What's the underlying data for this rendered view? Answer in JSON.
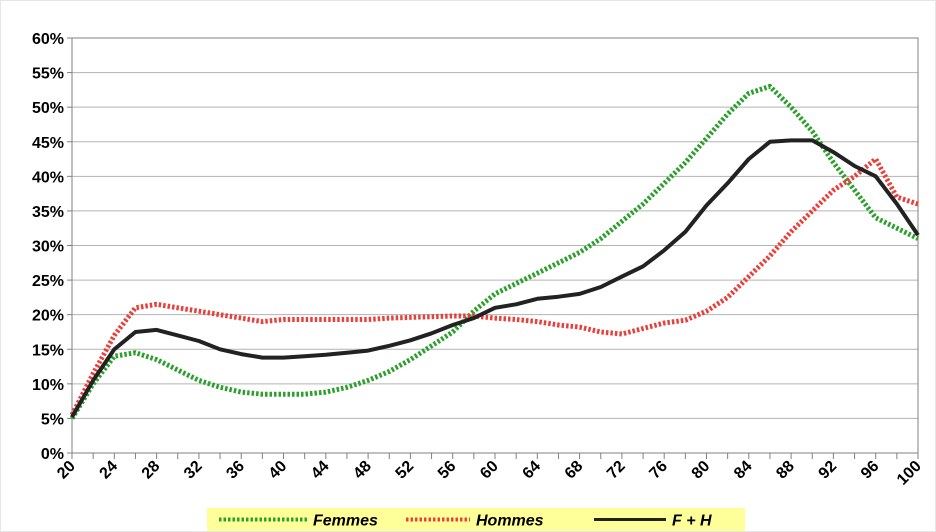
{
  "chart_data": {
    "type": "line",
    "title": "",
    "xlabel": "",
    "ylabel": "",
    "x": [
      20,
      22,
      24,
      26,
      28,
      30,
      32,
      34,
      36,
      38,
      40,
      42,
      44,
      46,
      48,
      50,
      52,
      54,
      56,
      58,
      60,
      62,
      64,
      66,
      68,
      70,
      72,
      74,
      76,
      78,
      80,
      82,
      84,
      86,
      88,
      90,
      92,
      94,
      96,
      98,
      100
    ],
    "xticks": [
      20,
      24,
      28,
      32,
      36,
      40,
      44,
      48,
      52,
      56,
      60,
      64,
      68,
      72,
      76,
      80,
      84,
      88,
      92,
      96,
      100
    ],
    "xlim": [
      20,
      100
    ],
    "ylim": [
      0,
      60
    ],
    "yticks": [
      0,
      5,
      10,
      15,
      20,
      25,
      30,
      35,
      40,
      45,
      50,
      55,
      60
    ],
    "ytick_format": "%",
    "grid": true,
    "legend": "bottom-center",
    "series": [
      {
        "name": "Femmes",
        "color": "#2ca02c",
        "style": "dotted",
        "values": [
          5,
          10,
          14,
          14.5,
          13.5,
          12,
          10.5,
          9.5,
          8.8,
          8.5,
          8.5,
          8.5,
          8.8,
          9.5,
          10.5,
          11.8,
          13.5,
          15.5,
          17.5,
          20.5,
          23,
          24.5,
          26,
          27.5,
          29,
          31,
          33.5,
          36,
          39,
          42,
          45.5,
          49,
          52,
          53,
          50,
          46.5,
          42,
          38,
          34,
          32.5,
          31
        ]
      },
      {
        "name": "Hommes",
        "color": "#e8413c",
        "style": "dotted",
        "values": [
          5.5,
          11.5,
          17,
          21,
          21.5,
          21,
          20.5,
          20,
          19.5,
          19,
          19.3,
          19.3,
          19.3,
          19.3,
          19.3,
          19.5,
          19.6,
          19.7,
          19.8,
          19.8,
          19.5,
          19.3,
          19,
          18.5,
          18.2,
          17.5,
          17.2,
          18,
          18.8,
          19.2,
          20.5,
          22.5,
          25.5,
          28.5,
          32,
          35,
          38,
          40,
          42.5,
          37,
          36
        ]
      },
      {
        "name": "F + H",
        "color": "#222222",
        "style": "solid",
        "values": [
          5.2,
          10.5,
          15,
          17.5,
          17.8,
          17,
          16.2,
          15,
          14.3,
          13.8,
          13.8,
          14,
          14.2,
          14.5,
          14.8,
          15.5,
          16.3,
          17.3,
          18.5,
          19.5,
          21,
          21.5,
          22.3,
          22.6,
          23,
          24,
          25.5,
          27,
          29.3,
          32,
          35.8,
          39,
          42.5,
          45,
          45.2,
          45.2,
          43.5,
          41.5,
          40,
          36,
          31.5
        ]
      }
    ]
  }
}
